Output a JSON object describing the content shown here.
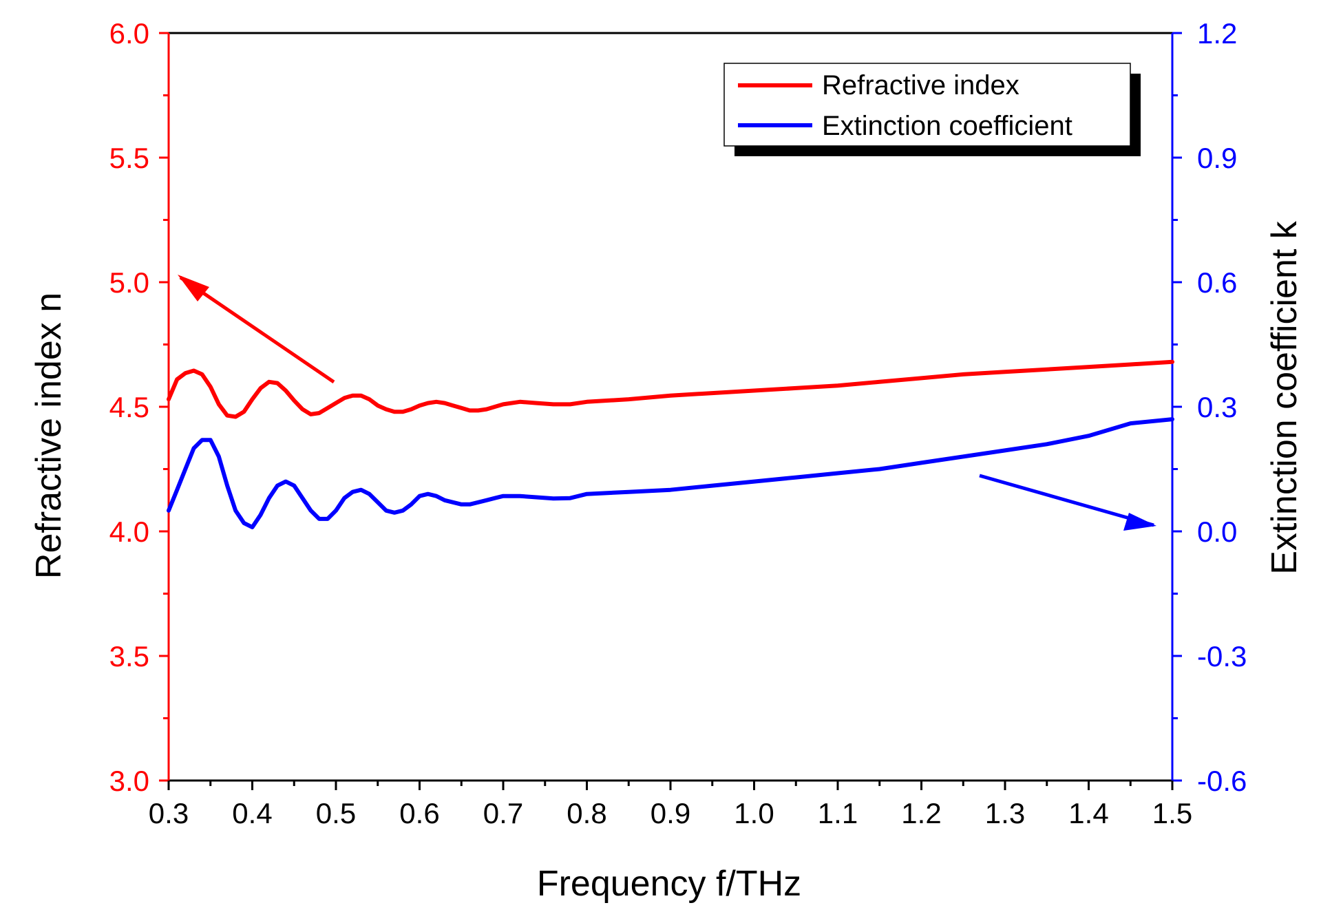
{
  "chart_data": {
    "type": "line",
    "xlabel": "Frequency f/THz",
    "ylabel_left": "Refractive index n",
    "ylabel_right": "Extinction coefficient k",
    "xlim": [
      0.3,
      1.5
    ],
    "ylim_left": [
      3.0,
      6.0
    ],
    "ylim_right": [
      -0.6,
      1.2
    ],
    "x_ticks": [
      "0.3",
      "0.4",
      "0.5",
      "0.6",
      "0.7",
      "0.8",
      "0.9",
      "1.0",
      "1.1",
      "1.2",
      "1.3",
      "1.4",
      "1.5"
    ],
    "y_left_ticks": [
      "3.0",
      "3.5",
      "4.0",
      "4.5",
      "5.0",
      "5.5",
      "6.0"
    ],
    "y_right_ticks": [
      "-0.6",
      "-0.3",
      "0.0",
      "0.3",
      "0.6",
      "0.9",
      "1.2"
    ],
    "grid": false,
    "legend_position": "top-right",
    "colors": {
      "left_axis": "#ff0000",
      "right_axis": "#0000ff",
      "axis": "#000000"
    },
    "series": [
      {
        "name": "Refractive index",
        "axis": "left",
        "color": "#ff0000",
        "x": [
          0.3,
          0.31,
          0.32,
          0.33,
          0.34,
          0.35,
          0.36,
          0.37,
          0.38,
          0.39,
          0.4,
          0.41,
          0.42,
          0.43,
          0.44,
          0.45,
          0.46,
          0.47,
          0.48,
          0.49,
          0.5,
          0.51,
          0.52,
          0.53,
          0.54,
          0.55,
          0.56,
          0.57,
          0.58,
          0.59,
          0.6,
          0.61,
          0.62,
          0.63,
          0.64,
          0.65,
          0.66,
          0.67,
          0.68,
          0.69,
          0.7,
          0.72,
          0.74,
          0.76,
          0.78,
          0.8,
          0.85,
          0.9,
          0.95,
          1.0,
          1.05,
          1.1,
          1.15,
          1.2,
          1.25,
          1.3,
          1.35,
          1.4,
          1.45,
          1.5
        ],
        "y": [
          4.53,
          4.61,
          4.635,
          4.645,
          4.63,
          4.58,
          4.51,
          4.465,
          4.46,
          4.48,
          4.53,
          4.575,
          4.6,
          4.595,
          4.565,
          4.525,
          4.49,
          4.47,
          4.475,
          4.495,
          4.515,
          4.535,
          4.545,
          4.545,
          4.53,
          4.505,
          4.49,
          4.48,
          4.48,
          4.49,
          4.505,
          4.515,
          4.52,
          4.515,
          4.505,
          4.495,
          4.485,
          4.485,
          4.49,
          4.5,
          4.51,
          4.52,
          4.515,
          4.51,
          4.51,
          4.52,
          4.53,
          4.545,
          4.555,
          4.565,
          4.575,
          4.585,
          4.6,
          4.615,
          4.63,
          4.64,
          4.65,
          4.66,
          4.67,
          4.68
        ]
      },
      {
        "name": "Extinction coefficient",
        "axis": "right",
        "color": "#0000ff",
        "x": [
          0.3,
          0.31,
          0.32,
          0.33,
          0.34,
          0.35,
          0.36,
          0.37,
          0.38,
          0.39,
          0.4,
          0.41,
          0.42,
          0.43,
          0.44,
          0.45,
          0.46,
          0.47,
          0.48,
          0.49,
          0.5,
          0.51,
          0.52,
          0.53,
          0.54,
          0.55,
          0.56,
          0.57,
          0.58,
          0.59,
          0.6,
          0.61,
          0.62,
          0.63,
          0.64,
          0.65,
          0.66,
          0.67,
          0.68,
          0.69,
          0.7,
          0.72,
          0.74,
          0.76,
          0.78,
          0.8,
          0.85,
          0.9,
          0.95,
          1.0,
          1.05,
          1.1,
          1.15,
          1.2,
          1.25,
          1.3,
          1.35,
          1.4,
          1.45,
          1.5
        ],
        "y": [
          0.05,
          0.1,
          0.15,
          0.2,
          0.22,
          0.22,
          0.18,
          0.11,
          0.05,
          0.02,
          0.01,
          0.04,
          0.08,
          0.11,
          0.12,
          0.11,
          0.08,
          0.05,
          0.03,
          0.03,
          0.05,
          0.08,
          0.095,
          0.1,
          0.09,
          0.07,
          0.05,
          0.045,
          0.05,
          0.065,
          0.085,
          0.09,
          0.085,
          0.075,
          0.07,
          0.065,
          0.065,
          0.07,
          0.075,
          0.08,
          0.085,
          0.085,
          0.082,
          0.079,
          0.08,
          0.09,
          0.095,
          0.1,
          0.11,
          0.12,
          0.13,
          0.14,
          0.15,
          0.165,
          0.18,
          0.195,
          0.21,
          0.23,
          0.26,
          0.27
        ]
      }
    ]
  }
}
